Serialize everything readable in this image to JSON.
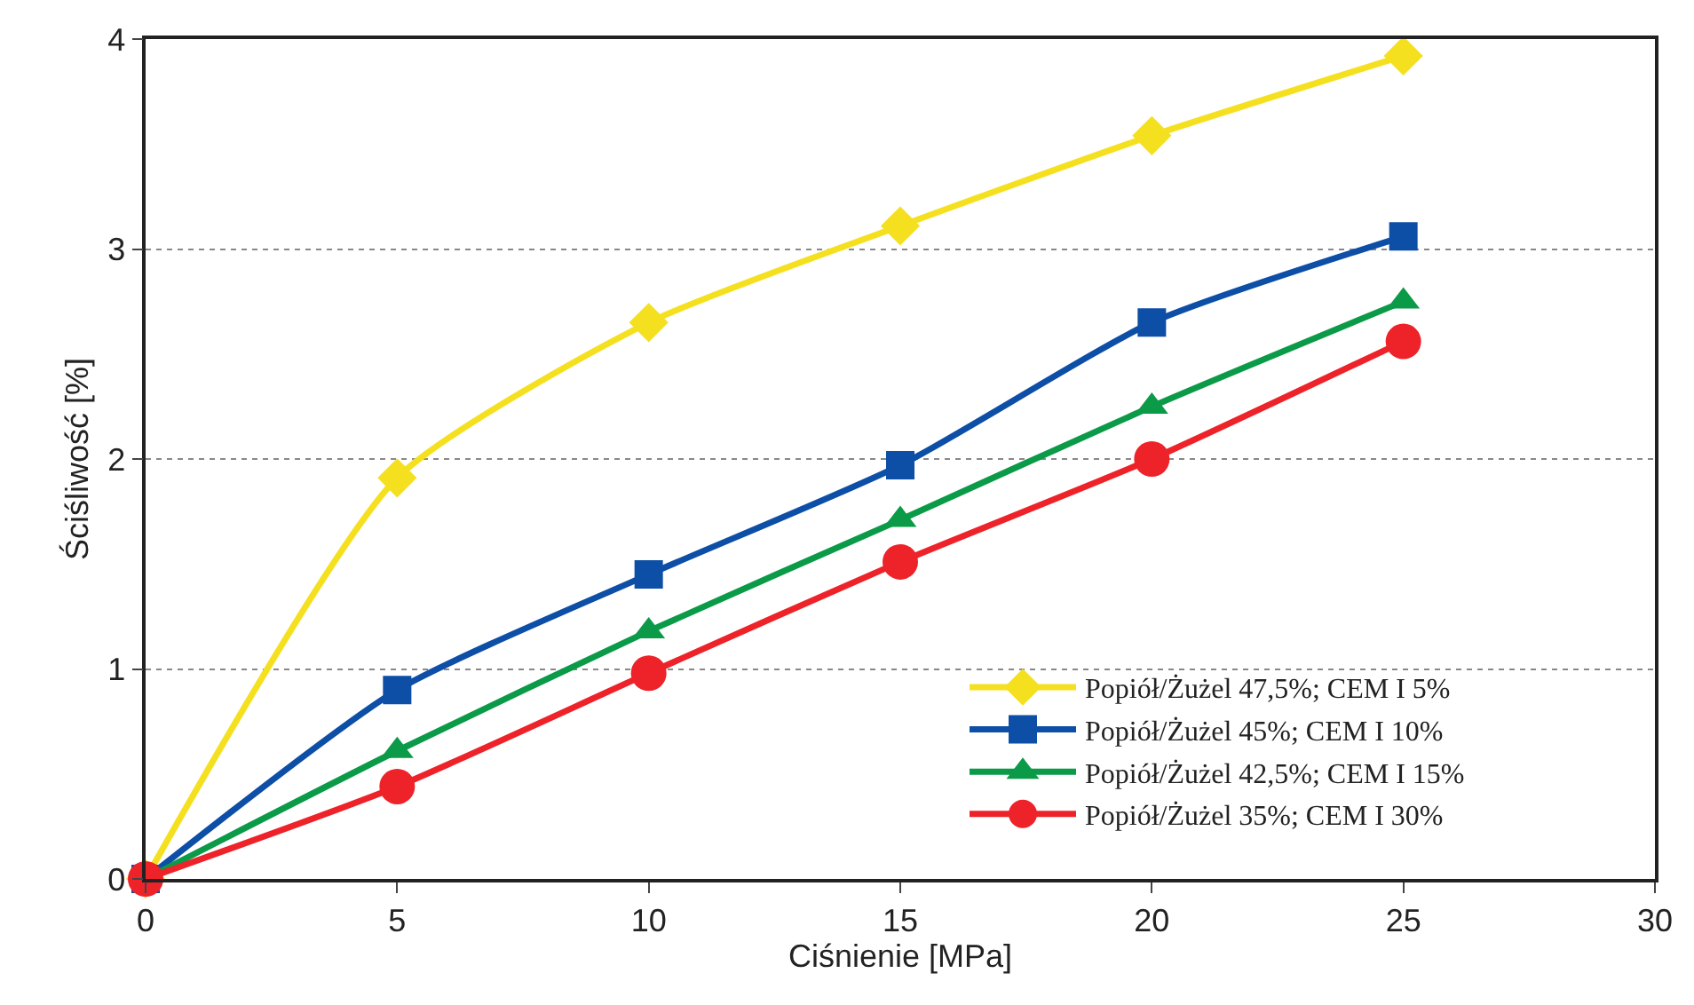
{
  "chart_data": {
    "type": "line",
    "xlabel": "Ciśnienie [MPa]",
    "ylabel": "Ściśliwość [%]",
    "x": [
      0,
      5,
      10,
      15,
      20,
      25
    ],
    "series": [
      {
        "name": "Popiół/Żużel 47,5%; CEM I 5%",
        "color": "#f5e020",
        "marker": "diamond",
        "values": [
          0,
          1.91,
          2.65,
          3.11,
          3.54,
          3.92
        ]
      },
      {
        "name": "Popiół/Żużel 45%; CEM I 10%",
        "color": "#0d4ea6",
        "marker": "square",
        "values": [
          0,
          0.9,
          1.45,
          1.97,
          2.65,
          3.06
        ]
      },
      {
        "name": "Popiół/Żużel 42,5%; CEM I 15%",
        "color": "#0a9a48",
        "marker": "triangle",
        "values": [
          0,
          0.61,
          1.18,
          1.71,
          2.25,
          2.75
        ]
      },
      {
        "name": "Popiół/Żużel 35%; CEM I 30%",
        "color": "#ee2229",
        "marker": "circle",
        "values": [
          0,
          0.44,
          0.98,
          1.51,
          2.0,
          2.56
        ]
      }
    ],
    "xlim": [
      0,
      30
    ],
    "xticks": [
      0,
      5,
      10,
      15,
      20,
      25,
      30
    ],
    "ylim": [
      0,
      4
    ],
    "yticks": [
      0,
      1,
      2,
      3,
      4
    ],
    "grid": "y",
    "legend": "bottom right",
    "line_style": "solid"
  }
}
